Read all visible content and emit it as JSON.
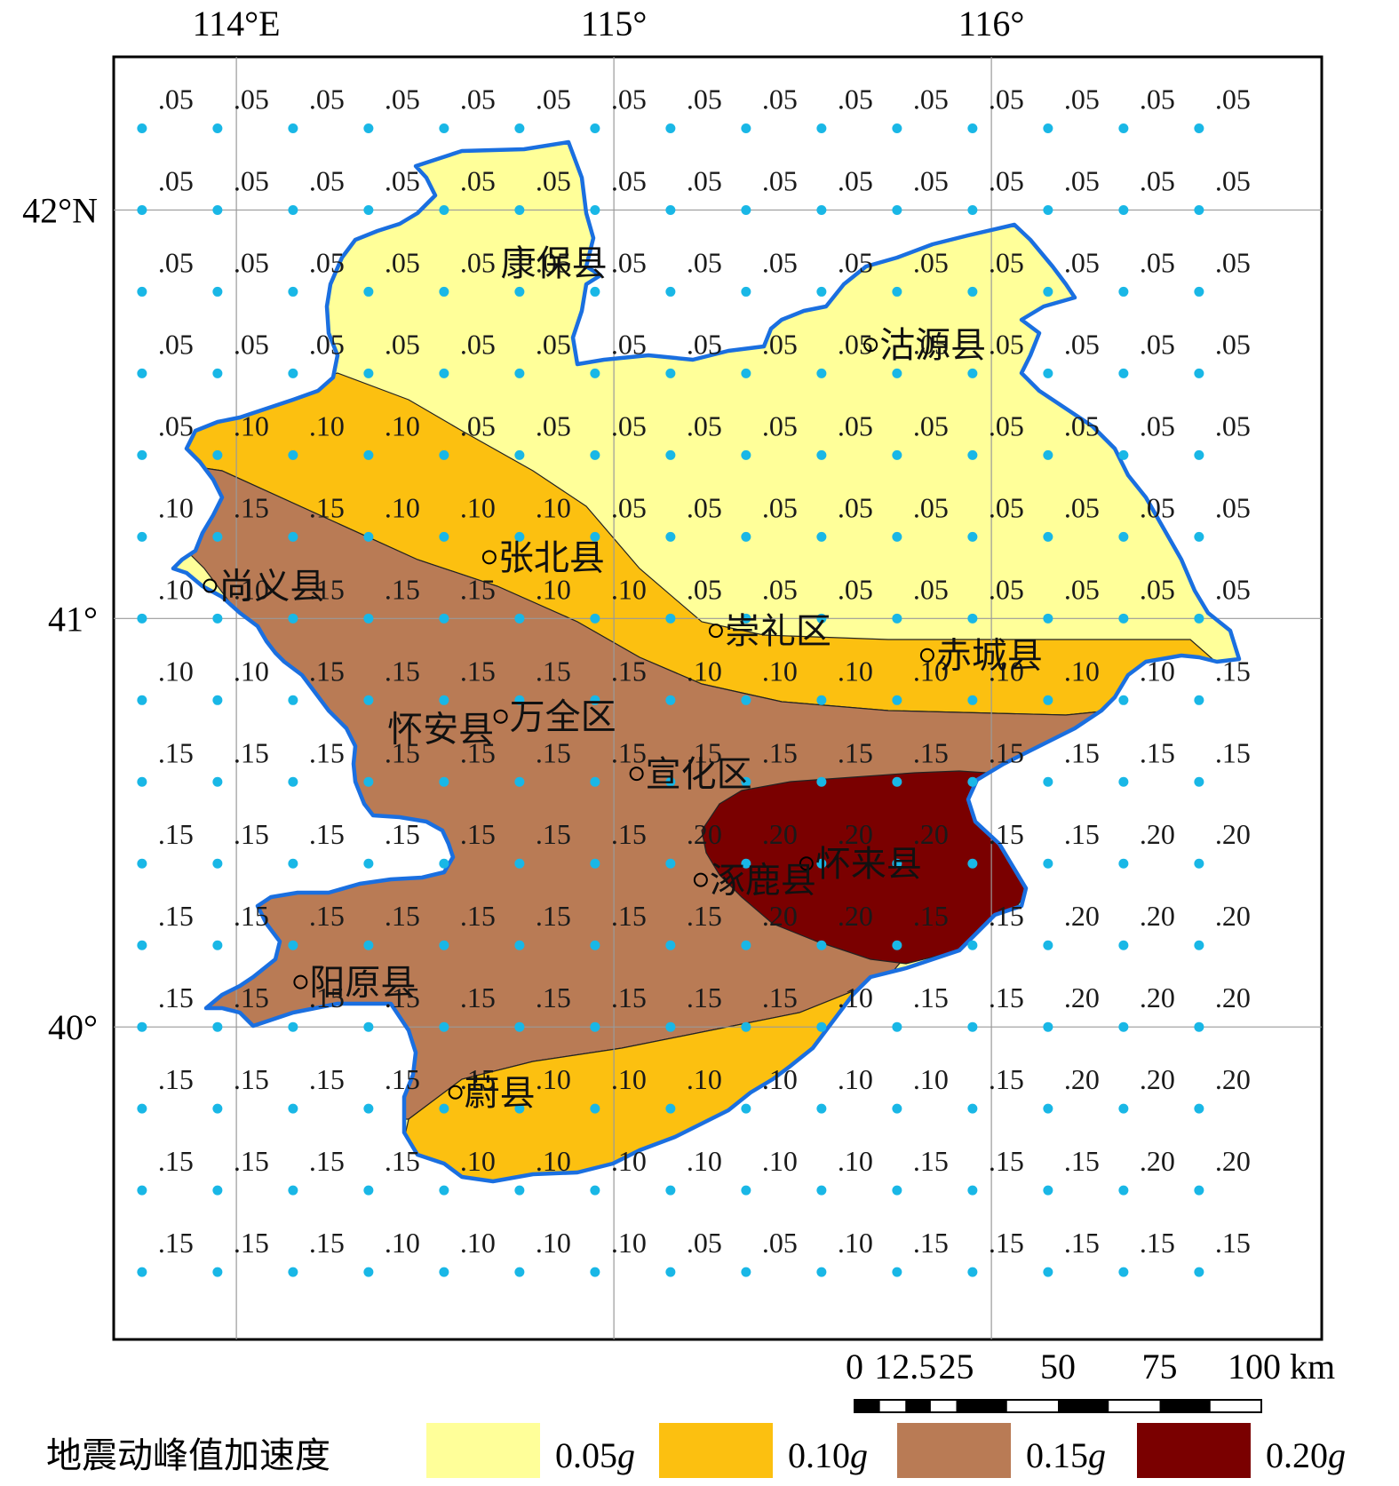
{
  "axes": {
    "lon_ticks": [
      {
        "value": 114,
        "label": "114°E"
      },
      {
        "value": 115,
        "label": "115°"
      },
      {
        "value": 116,
        "label": "116°"
      }
    ],
    "lat_ticks": [
      {
        "value": 42,
        "label": "42°N"
      },
      {
        "value": 41,
        "label": "41°"
      },
      {
        "value": 40,
        "label": "40°"
      }
    ],
    "lon_range": [
      113.675,
      116.875
    ],
    "lat_range": [
      39.235,
      42.375
    ]
  },
  "grid_points": {
    "lon_values": [
      113.75,
      113.95,
      114.15,
      114.35,
      114.55,
      114.75,
      114.95,
      115.15,
      115.35,
      115.55,
      115.75,
      115.95,
      116.15,
      116.35,
      116.55
    ],
    "lat_values": [
      42.2,
      42.0,
      41.8,
      41.6,
      41.4,
      41.2,
      41.0,
      40.8,
      40.6,
      40.4,
      40.2,
      40.0,
      39.8,
      39.6,
      39.4
    ],
    "rows": [
      [
        ".05",
        ".05",
        ".05",
        ".05",
        ".05",
        ".05",
        ".05",
        ".05",
        ".05",
        ".05",
        ".05",
        ".05",
        ".05",
        ".05",
        ".05"
      ],
      [
        ".05",
        ".05",
        ".05",
        ".05",
        ".05",
        ".05",
        ".05",
        ".05",
        ".05",
        ".05",
        ".05",
        ".05",
        ".05",
        ".05",
        ".05"
      ],
      [
        ".05",
        ".05",
        ".05",
        ".05",
        ".05",
        ".05",
        ".05",
        ".05",
        ".05",
        ".05",
        ".05",
        ".05",
        ".05",
        ".05",
        ".05"
      ],
      [
        ".05",
        ".05",
        ".05",
        ".05",
        ".05",
        ".05",
        ".05",
        ".05",
        ".05",
        ".05",
        ".05",
        ".05",
        ".05",
        ".05",
        ".05"
      ],
      [
        ".05",
        ".10",
        ".10",
        ".10",
        ".05",
        ".05",
        ".05",
        ".05",
        ".05",
        ".05",
        ".05",
        ".05",
        ".05",
        ".05",
        ".05"
      ],
      [
        ".10",
        ".15",
        ".15",
        ".10",
        ".10",
        ".10",
        ".05",
        ".05",
        ".05",
        ".05",
        ".05",
        ".05",
        ".05",
        ".05",
        ".05"
      ],
      [
        ".10",
        ".10",
        ".15",
        ".15",
        ".15",
        ".10",
        ".10",
        ".05",
        ".05",
        ".05",
        ".05",
        ".05",
        ".05",
        ".05",
        ".05"
      ],
      [
        ".10",
        ".10",
        ".15",
        ".15",
        ".15",
        ".15",
        ".15",
        ".10",
        ".10",
        ".10",
        ".10",
        ".10",
        ".10",
        ".10",
        ".15"
      ],
      [
        ".15",
        ".15",
        ".15",
        ".15",
        ".15",
        ".15",
        ".15",
        ".15",
        ".15",
        ".15",
        ".15",
        ".15",
        ".15",
        ".15",
        ".15"
      ],
      [
        ".15",
        ".15",
        ".15",
        ".15",
        ".15",
        ".15",
        ".15",
        ".20",
        ".20",
        ".20",
        ".20",
        ".15",
        ".15",
        ".20",
        ".20"
      ],
      [
        ".15",
        ".15",
        ".15",
        ".15",
        ".15",
        ".15",
        ".15",
        ".15",
        ".20",
        ".20",
        ".15",
        ".15",
        ".20",
        ".20",
        ".20"
      ],
      [
        ".15",
        ".15",
        ".15",
        ".15",
        ".15",
        ".15",
        ".15",
        ".15",
        ".15",
        ".10",
        ".15",
        ".15",
        ".20",
        ".20",
        ".20"
      ],
      [
        ".15",
        ".15",
        ".15",
        ".15",
        ".15",
        ".10",
        ".10",
        ".10",
        ".10",
        ".10",
        ".10",
        ".15",
        ".20",
        ".20",
        ".20"
      ],
      [
        ".15",
        ".15",
        ".15",
        ".15",
        ".10",
        ".10",
        ".10",
        ".10",
        ".10",
        ".10",
        ".15",
        ".15",
        ".15",
        ".20",
        ".20"
      ],
      [
        ".15",
        ".15",
        ".15",
        ".10",
        ".10",
        ".10",
        ".10",
        ".05",
        ".05",
        ".10",
        ".15",
        ".15",
        ".15",
        ".15",
        ".15"
      ]
    ]
  },
  "places": [
    {
      "name": "康保县",
      "lon": 114.7,
      "lat": 41.87,
      "dot": false
    },
    {
      "name": "沽源县",
      "lon": 115.68,
      "lat": 41.67,
      "dot": true
    },
    {
      "name": "尚义县",
      "lon": 113.93,
      "lat": 41.08,
      "dot": true
    },
    {
      "name": "张北县",
      "lon": 114.67,
      "lat": 41.15,
      "dot": true
    },
    {
      "name": "崇礼区",
      "lon": 115.27,
      "lat": 40.97,
      "dot": true
    },
    {
      "name": "赤城县",
      "lon": 115.83,
      "lat": 40.91,
      "dot": true
    },
    {
      "name": "怀安县",
      "lon": 114.4,
      "lat": 40.73,
      "dot": false
    },
    {
      "name": "万全区",
      "lon": 114.7,
      "lat": 40.76,
      "dot": true
    },
    {
      "name": "宣化区",
      "lon": 115.06,
      "lat": 40.62,
      "dot": true
    },
    {
      "name": "怀来县",
      "lon": 115.51,
      "lat": 40.4,
      "dot": true
    },
    {
      "name": "涿鹿县",
      "lon": 115.23,
      "lat": 40.36,
      "dot": true
    },
    {
      "name": "阳原县",
      "lon": 114.17,
      "lat": 40.11,
      "dot": true
    },
    {
      "name": "蔚县",
      "lon": 114.58,
      "lat": 39.84,
      "dot": true
    }
  ],
  "scale_bar": {
    "labels": [
      "0",
      "12.5",
      "25",
      "50",
      "75",
      "100 km"
    ],
    "km": [
      0,
      12.5,
      25,
      50,
      75,
      100
    ]
  },
  "legend": {
    "title": "地震动峰值加速度",
    "items": [
      {
        "label_num": "0.05",
        "unit": "g",
        "color": "#ffff99"
      },
      {
        "label_num": "0.10",
        "unit": "g",
        "color": "#fcc010"
      },
      {
        "label_num": "0.15",
        "unit": "g",
        "color": "#b97b55"
      },
      {
        "label_num": "0.20",
        "unit": "g",
        "color": "#7a0000"
      }
    ]
  },
  "colors": {
    "boundary": "#1a6fe0",
    "grid_dot": "#19b7e6",
    "graticule": "#9a9a9a",
    "frame": "#000000"
  }
}
